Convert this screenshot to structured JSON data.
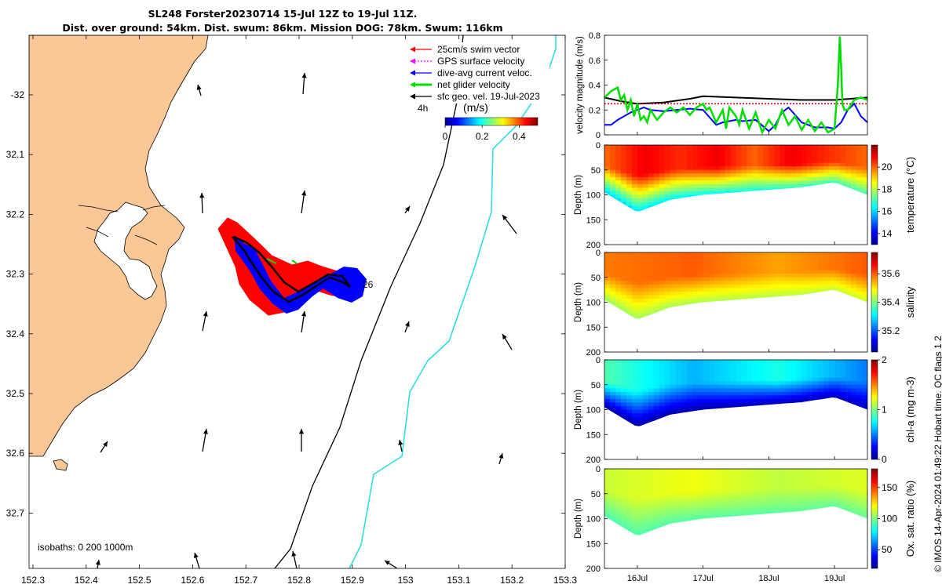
{
  "header": {
    "title_line1": "SL248 Forster20230714 15-Jul 12Z to 19-Jul 11Z.",
    "title_line2": "Dist. over ground: 54km. Dist. swum: 86km. Mission DOG: 78km. Swum: 116km"
  },
  "credit": "© IMOS 14-Apr-2024 01:49:22 Hobart time. QC flags 1  2",
  "colors": {
    "land": "#f9c896",
    "swim_vector": "#ff0000",
    "gps_velocity": "#ff00ff",
    "dive_avg_current": "#0000ff",
    "net_glider_velocity": "#00dd00",
    "geostrophic": "#000000",
    "isobath_200": "#000000",
    "isobath_1000": "#33dddd"
  },
  "map": {
    "x_ticks": [
      "152.3",
      "152.4",
      "152.5",
      "152.6",
      "152.7",
      "152.8",
      "152.9",
      "153",
      "153.1",
      "153.2",
      "153.3"
    ],
    "y_ticks": [
      "-32",
      "32.1",
      "32.2",
      "32.3",
      "32.4",
      "32.5",
      "32.6",
      "32.7"
    ],
    "legend": [
      {
        "label": "25cm/s swim vector",
        "color": "#ff0000",
        "icon": "arrow-icon"
      },
      {
        "label": "GPS surface velocity",
        "color": "#ff00ff",
        "icon": "dotted-arrow-icon"
      },
      {
        "label": "dive-avg current veloc.",
        "color": "#0000ff",
        "icon": "arrow-icon"
      },
      {
        "label": "net glider velocity",
        "color": "#00dd00",
        "icon": "thick-arrow-icon"
      },
      {
        "label": "sfc geo. vel. 19-Jul-2023",
        "color": "#000000",
        "icon": "arrow-icon"
      }
    ],
    "scale_label": "4h",
    "colorbar_unit": "(m/s)",
    "colorbar_ticks": [
      "0",
      "0.2",
      "0.4"
    ],
    "track_end_label": "26",
    "isobaths_label": "isobaths: 0   200  1000m"
  },
  "chart_data": [
    {
      "type": "line",
      "panel": "velocity",
      "ylabel": "velocity magnitude (m/s)",
      "ylim": [
        0,
        0.8
      ],
      "y_ticks": [
        "0",
        "0.2",
        "0.4",
        "0.6",
        "0.8"
      ],
      "x_ticks": [
        "16Jul",
        "17Jul",
        "18Jul",
        "19Jul"
      ],
      "xlim_days": [
        15.5,
        19.5
      ],
      "series": [
        {
          "color": "#000000",
          "x": [
            15.5,
            15.75,
            16.0,
            16.4,
            16.8,
            17.0,
            17.5,
            18.0,
            18.5,
            19.0,
            19.5
          ],
          "y": [
            0.3,
            0.27,
            0.25,
            0.26,
            0.29,
            0.31,
            0.3,
            0.29,
            0.28,
            0.28,
            0.3
          ]
        },
        {
          "color": "#cc0000",
          "x": [
            15.5,
            19.5
          ],
          "y": [
            0.25,
            0.25
          ]
        },
        {
          "color": "#0000ff",
          "x": [
            15.5,
            15.6,
            15.7,
            15.8,
            15.9,
            16.0,
            16.1,
            16.2,
            16.4,
            16.6,
            16.8,
            17.0,
            17.1,
            17.2,
            17.3,
            17.5,
            17.6,
            17.8,
            18.0,
            18.1,
            18.2,
            18.3,
            18.5,
            18.7,
            18.9,
            19.0,
            19.1,
            19.2,
            19.3,
            19.4,
            19.5
          ],
          "y": [
            0.08,
            0.08,
            0.12,
            0.15,
            0.18,
            0.2,
            0.22,
            0.2,
            0.19,
            0.2,
            0.21,
            0.2,
            0.14,
            0.08,
            0.1,
            0.12,
            0.11,
            0.12,
            0.03,
            0.08,
            0.18,
            0.22,
            0.1,
            0.06,
            0.06,
            0.05,
            0.1,
            0.2,
            0.25,
            0.15,
            0.1
          ]
        },
        {
          "color": "#00dd00",
          "x": [
            15.5,
            15.6,
            15.7,
            15.75,
            15.8,
            15.85,
            15.9,
            15.95,
            16.0,
            16.05,
            16.1,
            16.15,
            16.2,
            16.3,
            16.4,
            16.5,
            16.6,
            16.7,
            16.8,
            16.9,
            17.0,
            17.05,
            17.1,
            17.2,
            17.3,
            17.35,
            17.4,
            17.5,
            17.55,
            17.6,
            17.7,
            17.8,
            17.9,
            18.0,
            18.1,
            18.2,
            18.3,
            18.4,
            18.5,
            18.6,
            18.7,
            18.8,
            18.9,
            19.0,
            19.05,
            19.08,
            19.1,
            19.12,
            19.15,
            19.2,
            19.3,
            19.4,
            19.5
          ],
          "y": [
            0.3,
            0.35,
            0.38,
            0.28,
            0.32,
            0.2,
            0.28,
            0.15,
            0.25,
            0.12,
            0.15,
            0.1,
            0.2,
            0.12,
            0.18,
            0.22,
            0.18,
            0.22,
            0.16,
            0.22,
            0.25,
            0.2,
            0.22,
            0.1,
            0.2,
            0.05,
            0.22,
            0.15,
            0.08,
            0.2,
            0.05,
            0.18,
            0.02,
            0.12,
            0.05,
            0.2,
            0.08,
            0.15,
            0.04,
            0.12,
            0.03,
            0.1,
            0.02,
            0.05,
            0.4,
            0.79,
            0.55,
            0.25,
            0.2,
            0.2,
            0.28,
            0.3,
            0.28
          ]
        }
      ]
    },
    {
      "type": "heatmap",
      "panel": "temperature",
      "ylabel": "Depth (m)",
      "colorbar_label": "temperature (°C)",
      "colorbar_ticks": [
        "14",
        "16",
        "18",
        "20"
      ],
      "clim": [
        13,
        22
      ],
      "y_ticks": [
        "0",
        "50",
        "100",
        "150",
        "200"
      ],
      "ylim": [
        0,
        200
      ],
      "surface_values": [
        20,
        21,
        20.5,
        21,
        20,
        21,
        20.5,
        20
      ],
      "bottom_values": [
        16,
        17
      ],
      "max_depth": {
        "x": [
          15.5,
          16.0,
          16.5,
          17.0,
          17.5,
          18.0,
          18.5,
          19.0,
          19.5
        ],
        "y": [
          95,
          135,
          110,
          100,
          95,
          90,
          85,
          75,
          100
        ]
      }
    },
    {
      "type": "heatmap",
      "panel": "salinity",
      "ylabel": "Depth (m)",
      "colorbar_label": "salinity",
      "colorbar_ticks": [
        "35.2",
        "35.4",
        "35.6"
      ],
      "clim": [
        35.05,
        35.75
      ],
      "y_ticks": [
        "0",
        "50",
        "100",
        "150",
        "200"
      ],
      "ylim": [
        0,
        200
      ],
      "surface_values": [
        35.58,
        35.6,
        35.55,
        35.6
      ],
      "bottom_values": [
        35.42,
        35.45
      ],
      "max_depth": {
        "x": [
          15.5,
          16.0,
          16.5,
          17.0,
          17.5,
          18.0,
          18.5,
          19.0,
          19.5
        ],
        "y": [
          95,
          135,
          110,
          100,
          95,
          90,
          85,
          75,
          100
        ]
      }
    },
    {
      "type": "heatmap",
      "panel": "chlorophyll",
      "ylabel": "Depth (m)",
      "colorbar_label": "chl-a (mg m-3)",
      "colorbar_ticks": [
        "0",
        "1",
        "2"
      ],
      "clim": [
        0,
        2
      ],
      "y_ticks": [
        "0",
        "50",
        "100",
        "150",
        "200"
      ],
      "ylim": [
        0,
        200
      ],
      "surface_values": [
        0.9,
        0.6,
        0.8,
        0.5
      ],
      "bottom_values": [
        0.05,
        0.1
      ],
      "max_depth": {
        "x": [
          15.5,
          16.0,
          16.5,
          17.0,
          17.5,
          18.0,
          18.5,
          19.0,
          19.5
        ],
        "y": [
          95,
          135,
          110,
          100,
          95,
          90,
          85,
          75,
          100
        ]
      }
    },
    {
      "type": "heatmap",
      "panel": "oxygen",
      "ylabel": "Depth (m)",
      "colorbar_label": "Ox. sat. ratio (%)",
      "colorbar_ticks": [
        "50",
        "100",
        "150"
      ],
      "clim": [
        20,
        180
      ],
      "y_ticks": [
        "0",
        "50",
        "100",
        "150",
        "200"
      ],
      "ylim": [
        0,
        200
      ],
      "surface_values": [
        112,
        118,
        110,
        115
      ],
      "bottom_values": [
        92,
        96
      ],
      "max_depth": {
        "x": [
          15.5,
          16.0,
          16.5,
          17.0,
          17.5,
          18.0,
          18.5,
          19.0,
          19.5
        ],
        "y": [
          95,
          135,
          110,
          100,
          95,
          90,
          85,
          75,
          100
        ]
      }
    }
  ]
}
